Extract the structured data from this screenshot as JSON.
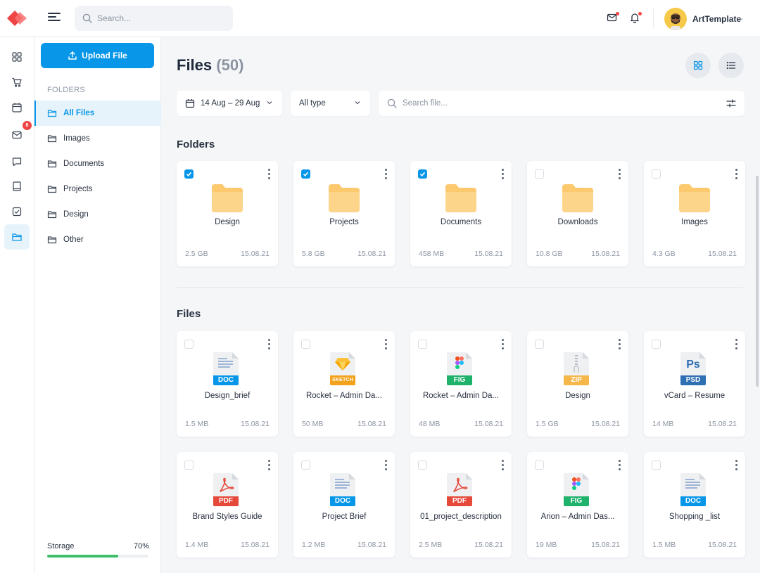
{
  "app": {
    "accent": "#0796e8",
    "brand": "#ef4444"
  },
  "header": {
    "search_placeholder": "Search...",
    "user_name": "ArtTemplate",
    "icons": [
      "menu-icon",
      "search-icon",
      "mail-icon",
      "bell-icon",
      "chevron-down-icon"
    ]
  },
  "rail": {
    "items": [
      {
        "icon": "dashboard-icon"
      },
      {
        "icon": "cart-icon"
      },
      {
        "icon": "calendar-icon"
      },
      {
        "icon": "mail-icon",
        "badge": "8"
      },
      {
        "icon": "chat-icon"
      },
      {
        "icon": "book-icon"
      },
      {
        "icon": "checkbox-icon"
      },
      {
        "icon": "folder-icon",
        "active": true
      }
    ]
  },
  "sidebar": {
    "upload_label": "Upload File",
    "folders_heading": "FOLDERS",
    "folders": [
      {
        "label": "All Files",
        "active": true
      },
      {
        "label": "Images"
      },
      {
        "label": "Documents"
      },
      {
        "label": "Projects"
      },
      {
        "label": "Design"
      },
      {
        "label": "Other"
      }
    ],
    "storage_label": "Storage",
    "storage_percent": "70%",
    "storage_fraction": 0.7
  },
  "main": {
    "title": "Files",
    "count": "(50)",
    "date_range": "14 Aug – 29 Aug",
    "type_filter": "All type",
    "file_search_placeholder": "Search file...",
    "folders_title": "Folders",
    "files_title": "Files",
    "folders": [
      {
        "name": "Design",
        "size": "2.5 GB",
        "date": "15.08.21",
        "checked": true
      },
      {
        "name": "Projects",
        "size": "5.8 GB",
        "date": "15.08.21",
        "checked": true
      },
      {
        "name": "Documents",
        "size": "458 MB",
        "date": "15.08.21",
        "checked": true
      },
      {
        "name": "Downloads",
        "size": "10.8 GB",
        "date": "15.08.21",
        "checked": false
      },
      {
        "name": "Images",
        "size": "4.3 GB",
        "date": "15.08.21",
        "checked": false
      }
    ],
    "files_row1": [
      {
        "name": "Design_brief",
        "size": "1.5 MB",
        "date": "15.08.21",
        "type": "DOC",
        "color": "#0796e8",
        "icon": "doc-file-icon"
      },
      {
        "name": "Rocket – Admin Da...",
        "size": "50 MB",
        "date": "15.08.21",
        "type": "SKETCH",
        "color": "#f3a21c",
        "icon": "sketch-file-icon"
      },
      {
        "name": "Rocket – Admin Da...",
        "size": "48 MB",
        "date": "15.08.21",
        "type": "FIG",
        "color": "#1fb26b",
        "icon": "figma-file-icon"
      },
      {
        "name": "Design",
        "size": "1.5 GB",
        "date": "15.08.21",
        "type": "ZIP",
        "color": "#f5b74a",
        "icon": "zip-file-icon"
      },
      {
        "name": "vCard – Resume",
        "size": "14 MB",
        "date": "15.08.21",
        "type": "PSD",
        "color": "#2f6fb3",
        "icon": "psd-file-icon"
      }
    ],
    "files_row2": [
      {
        "name": "Brand Styles Guide",
        "size": "1.4 MB",
        "date": "15.08.21",
        "type": "PDF",
        "color": "#e5493a",
        "icon": "pdf-file-icon"
      },
      {
        "name": "Project Brief",
        "size": "1.2 MB",
        "date": "15.08.21",
        "type": "DOC",
        "color": "#0796e8",
        "icon": "doc-file-icon"
      },
      {
        "name": "01_project_description",
        "size": "2.5 MB",
        "date": "15.08.21",
        "type": "PDF",
        "color": "#e5493a",
        "icon": "pdf-file-icon"
      },
      {
        "name": "Arion – Admin Das...",
        "size": "19 MB",
        "date": "15.08.21",
        "type": "FIG",
        "color": "#1fb26b",
        "icon": "figma-file-icon"
      },
      {
        "name": "Shopping _list",
        "size": "1.5 MB",
        "date": "15.08.21",
        "type": "DOC",
        "color": "#0796e8",
        "icon": "doc-file-icon"
      }
    ]
  }
}
